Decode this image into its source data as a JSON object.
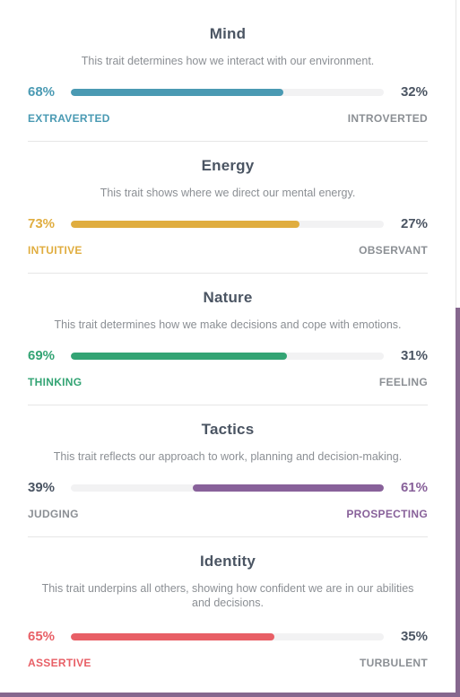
{
  "traits": [
    {
      "title": "Mind",
      "description": "This trait determines how we interact with our environment.",
      "left_pct": "68%",
      "right_pct": "32%",
      "left_label": "EXTRAVERTED",
      "right_label": "INTROVERTED",
      "fill_side": "left",
      "fill_fraction": 0.68,
      "color": "#4a9ab3"
    },
    {
      "title": "Energy",
      "description": "This trait shows where we direct our mental energy.",
      "left_pct": "73%",
      "right_pct": "27%",
      "left_label": "INTUITIVE",
      "right_label": "OBSERVANT",
      "fill_side": "left",
      "fill_fraction": 0.73,
      "color": "#e0ad3f"
    },
    {
      "title": "Nature",
      "description": "This trait determines how we make decisions and cope with emotions.",
      "left_pct": "69%",
      "right_pct": "31%",
      "left_label": "THINKING",
      "right_label": "FEELING",
      "fill_side": "left",
      "fill_fraction": 0.69,
      "color": "#33a474"
    },
    {
      "title": "Tactics",
      "description": "This trait reflects our approach to work, planning and decision-making.",
      "left_pct": "39%",
      "right_pct": "61%",
      "left_label": "JUDGING",
      "right_label": "PROSPECTING",
      "fill_side": "right",
      "fill_fraction": 0.61,
      "color": "#88619a"
    },
    {
      "title": "Identity",
      "description": "This trait underpins all others, showing how confident we are in our abilities and decisions.",
      "left_pct": "65%",
      "right_pct": "35%",
      "left_label": "ASSERTIVE",
      "right_label": "TURBULENT",
      "fill_side": "left",
      "fill_fraction": 0.65,
      "color": "#e85f66"
    }
  ]
}
